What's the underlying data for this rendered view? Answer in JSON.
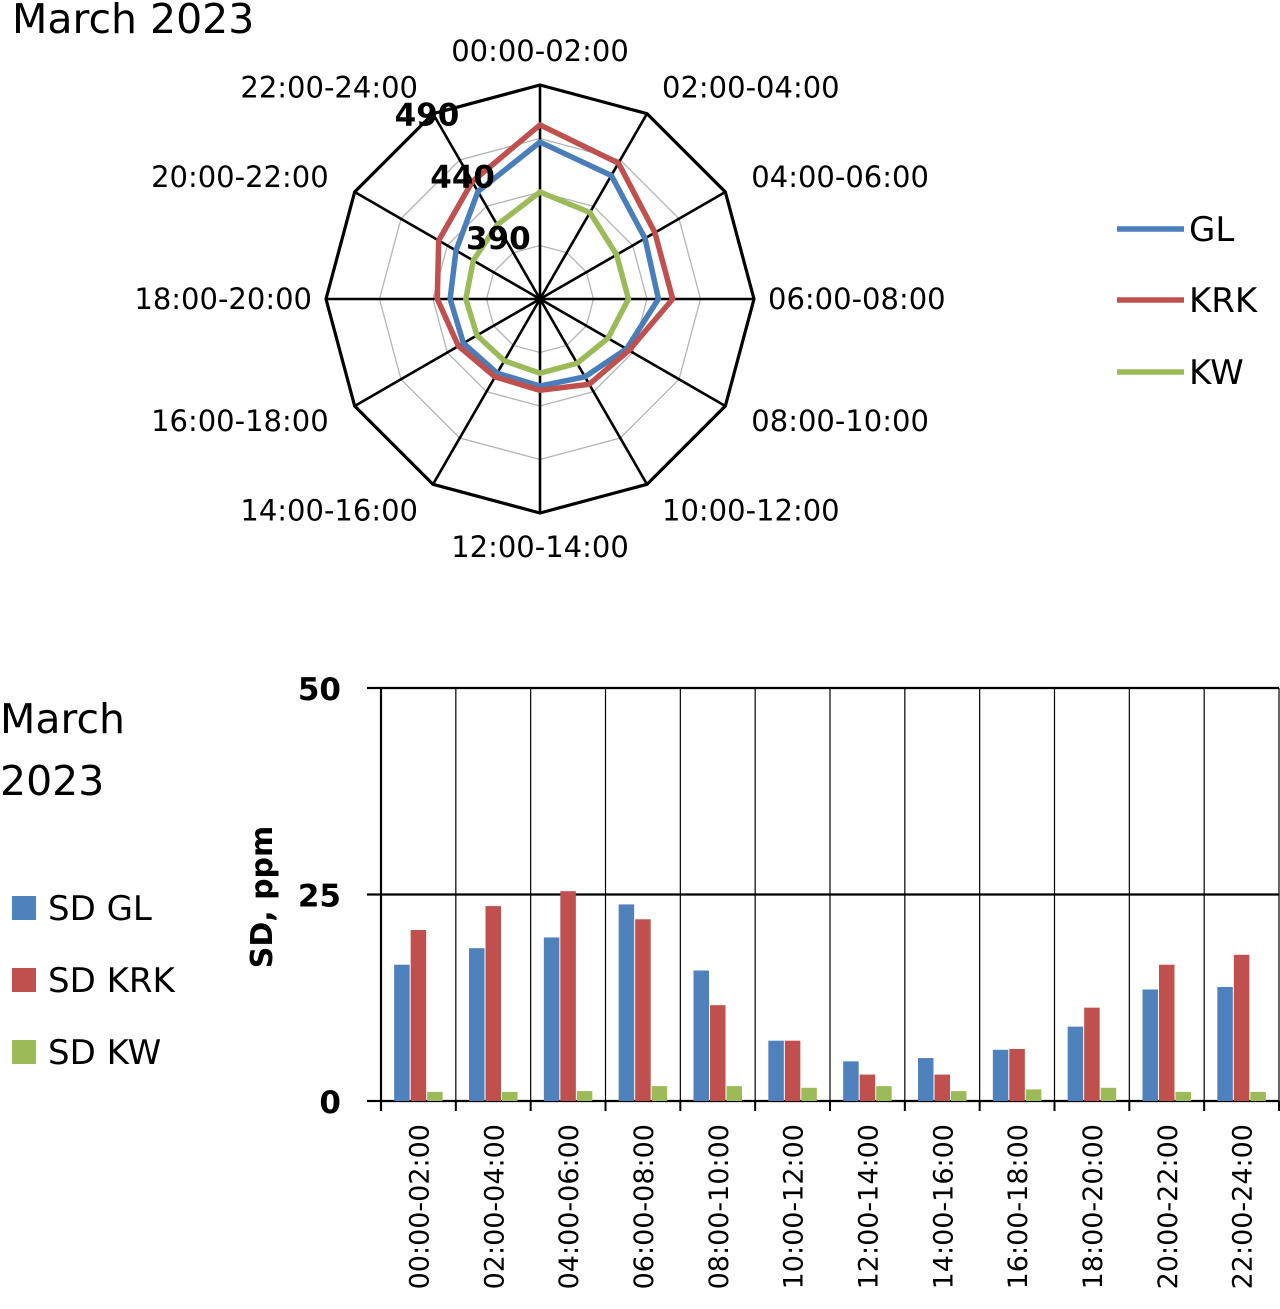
{
  "chart_data": [
    {
      "type": "radar",
      "title": "March 2023",
      "categories": [
        "00:00-02:00",
        "02:00-04:00",
        "04:00-06:00",
        "06:00-08:00",
        "08:00-10:00",
        "10:00-12:00",
        "12:00-14:00",
        "14:00-16:00",
        "16:00-18:00",
        "18:00-20:00",
        "20:00-22:00",
        "22:00-24:00"
      ],
      "rlim": [
        340,
        490
      ],
      "rticks": [
        {
          "value": 390,
          "label": "390"
        },
        {
          "value": 440,
          "label": "440"
        },
        {
          "value": 490,
          "label": "490"
        }
      ],
      "grid": true,
      "legend_position": "right",
      "series": [
        {
          "name": "GL",
          "color": "#4a7ebb",
          "values": [
            450,
            440,
            425,
            423,
            410,
            403,
            401,
            400,
            402,
            403,
            408,
            427
          ]
        },
        {
          "name": "KRK",
          "color": "#c0504d",
          "values": [
            462,
            450,
            433,
            433,
            412,
            409,
            404,
            403,
            406,
            412,
            422,
            435
          ]
        },
        {
          "name": "KW",
          "color": "#9bbb59",
          "values": [
            415,
            410,
            402,
            402,
            395,
            392,
            392,
            390,
            391,
            392,
            394,
            400
          ]
        }
      ]
    },
    {
      "type": "bar",
      "title": "March 2023",
      "ylabel": "SD, ppm",
      "xlabel": "",
      "ylim": [
        0,
        50
      ],
      "yticks": [
        0,
        25,
        50
      ],
      "legend_position": "left",
      "categories": [
        "00:00-02:00",
        "02:00-04:00",
        "04:00-06:00",
        "06:00-08:00",
        "08:00-10:00",
        "10:00-12:00",
        "12:00-14:00",
        "14:00-16:00",
        "16:00-18:00",
        "18:00-20:00",
        "20:00-22:00",
        "22:00-24:00"
      ],
      "series": [
        {
          "name": "SD GL",
          "color": "#4f81bd",
          "values": [
            16.5,
            18.5,
            19.8,
            23.8,
            15.8,
            7.3,
            4.8,
            5.2,
            6.2,
            9.0,
            13.5,
            13.8
          ]
        },
        {
          "name": "SD KRK",
          "color": "#c0504d",
          "values": [
            20.7,
            23.6,
            25.4,
            22.0,
            11.6,
            7.3,
            3.2,
            3.2,
            6.3,
            11.3,
            16.5,
            17.7
          ]
        },
        {
          "name": "SD KW",
          "color": "#9bbb59",
          "values": [
            1.1,
            1.1,
            1.2,
            1.8,
            1.8,
            1.6,
            1.8,
            1.2,
            1.4,
            1.6,
            1.1,
            1.1
          ]
        }
      ]
    }
  ]
}
